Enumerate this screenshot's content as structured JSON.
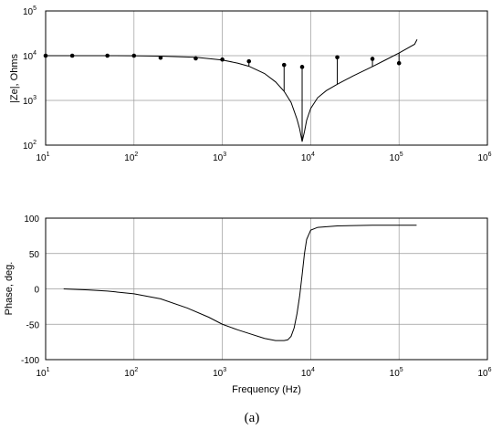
{
  "chart_data": [
    {
      "type": "line",
      "ylabel": "|Ze|, Ohms",
      "xscale": "log",
      "yscale": "log",
      "xlim": [
        10,
        1000000
      ],
      "ylim": [
        100,
        100000
      ],
      "grid": true,
      "xticks": [
        {
          "base": "10",
          "exp": "1"
        },
        {
          "base": "10",
          "exp": "2"
        },
        {
          "base": "10",
          "exp": "3"
        },
        {
          "base": "10",
          "exp": "4"
        },
        {
          "base": "10",
          "exp": "5"
        },
        {
          "base": "10",
          "exp": "6"
        }
      ],
      "yticks": [
        {
          "base": "10",
          "exp": "2"
        },
        {
          "base": "10",
          "exp": "3"
        },
        {
          "base": "10",
          "exp": "4"
        },
        {
          "base": "10",
          "exp": "5"
        }
      ],
      "series": [
        {
          "kind": "line",
          "points": [
            [
              10,
              10000
            ],
            [
              20,
              10000
            ],
            [
              50,
              10000
            ],
            [
              100,
              9950
            ],
            [
              200,
              9750
            ],
            [
              500,
              9200
            ],
            [
              1000,
              8000
            ],
            [
              1500,
              6800
            ],
            [
              2000,
              5800
            ],
            [
              3000,
              4000
            ],
            [
              4000,
              2600
            ],
            [
              5000,
              1600
            ],
            [
              6000,
              900
            ],
            [
              7000,
              380
            ],
            [
              7500,
              230
            ],
            [
              8000,
              120
            ],
            [
              8500,
              200
            ],
            [
              9000,
              360
            ],
            [
              10000,
              660
            ],
            [
              12000,
              1150
            ],
            [
              15000,
              1650
            ],
            [
              20000,
              2300
            ],
            [
              30000,
              3500
            ],
            [
              50000,
              5700
            ],
            [
              70000,
              8000
            ],
            [
              100000,
              11500
            ],
            [
              150000,
              18000
            ],
            [
              160000,
              23000
            ]
          ]
        },
        {
          "kind": "stem",
          "points": [
            [
              10,
              10000
            ],
            [
              20,
              10000
            ],
            [
              50,
              10000
            ],
            [
              100,
              10000
            ],
            [
              200,
              9000
            ],
            [
              500,
              8700
            ],
            [
              1000,
              8200
            ],
            [
              2000,
              7500
            ],
            [
              5000,
              6200
            ],
            [
              8000,
              5600
            ],
            [
              20000,
              9200
            ],
            [
              50000,
              8500
            ],
            [
              100000,
              6800
            ]
          ]
        }
      ]
    },
    {
      "type": "line",
      "xlabel": "Frequency (Hz)",
      "ylabel": "Phase, deg.",
      "xscale": "log",
      "xlim": [
        10,
        1000000
      ],
      "ylim": [
        -100,
        100
      ],
      "grid": true,
      "xticks": [
        {
          "base": "10",
          "exp": "1"
        },
        {
          "base": "10",
          "exp": "2"
        },
        {
          "base": "10",
          "exp": "3"
        },
        {
          "base": "10",
          "exp": "4"
        },
        {
          "base": "10",
          "exp": "5"
        },
        {
          "base": "10",
          "exp": "6"
        }
      ],
      "yticks": [
        "100",
        "50",
        "0",
        "-50",
        "-100"
      ],
      "series": [
        {
          "kind": "line",
          "points": [
            [
              16,
              0
            ],
            [
              30,
              -1.5
            ],
            [
              50,
              -3
            ],
            [
              100,
              -7
            ],
            [
              200,
              -14
            ],
            [
              400,
              -27
            ],
            [
              700,
              -40
            ],
            [
              1000,
              -50
            ],
            [
              1500,
              -58
            ],
            [
              2000,
              -63
            ],
            [
              3000,
              -70
            ],
            [
              4000,
              -73
            ],
            [
              5000,
              -73
            ],
            [
              5500,
              -72
            ],
            [
              6000,
              -67
            ],
            [
              6500,
              -55
            ],
            [
              7000,
              -35
            ],
            [
              7500,
              -10
            ],
            [
              8000,
              20
            ],
            [
              8500,
              50
            ],
            [
              9000,
              70
            ],
            [
              10000,
              83
            ],
            [
              12000,
              87
            ],
            [
              20000,
              89
            ],
            [
              50000,
              90
            ],
            [
              100000,
              90
            ],
            [
              158000,
              90
            ]
          ]
        }
      ]
    }
  ],
  "caption": "(a)"
}
